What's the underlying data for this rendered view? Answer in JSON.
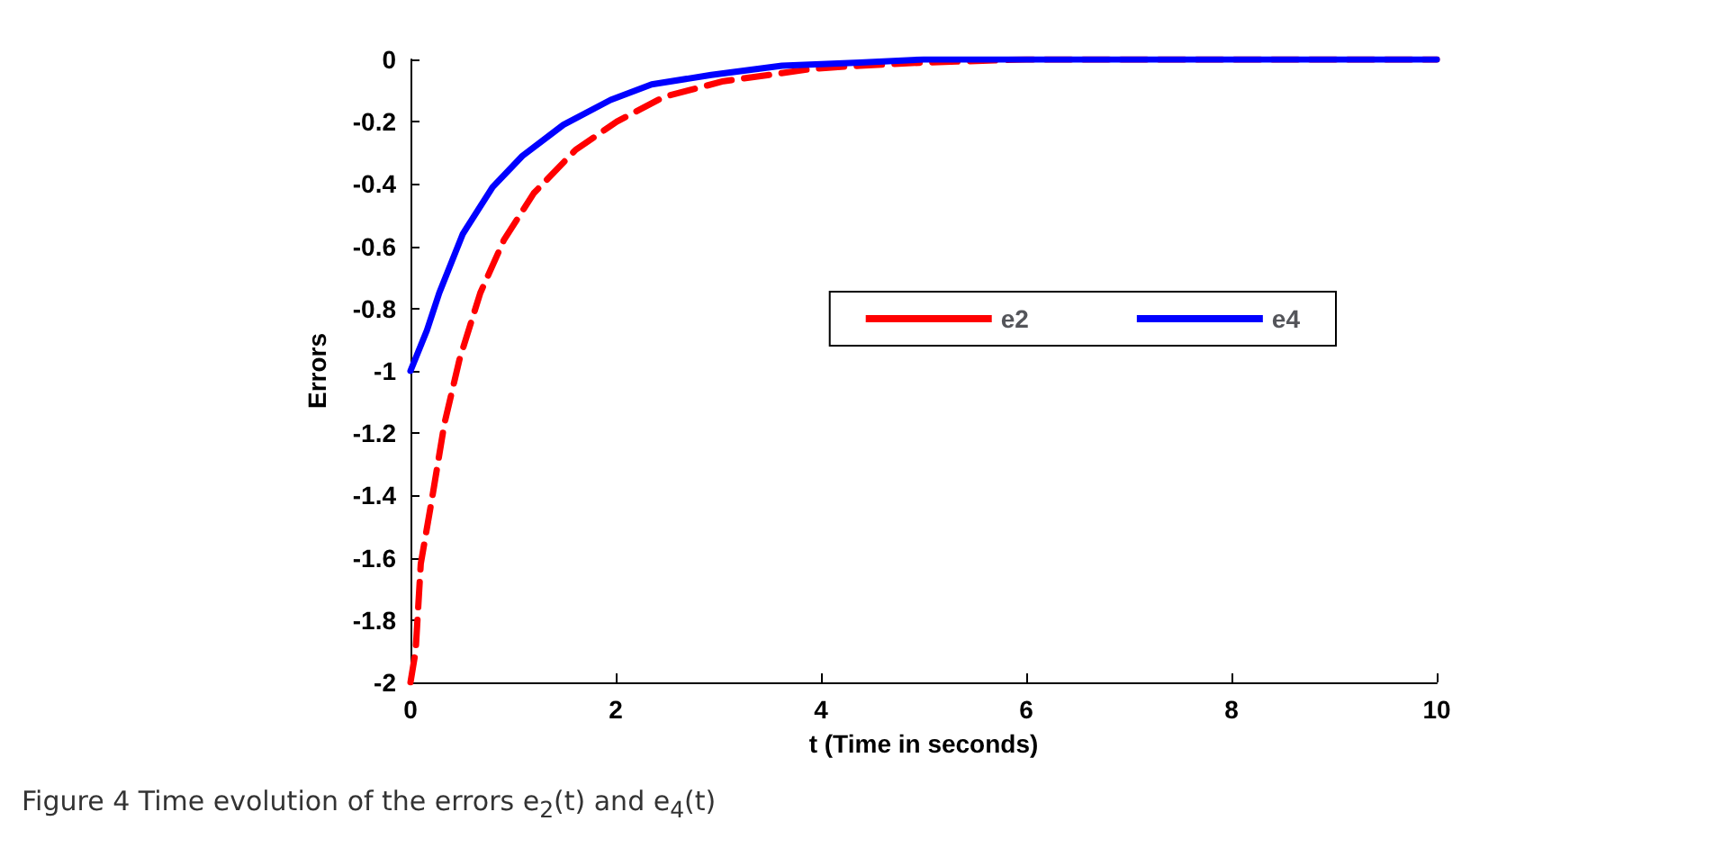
{
  "chart_data": {
    "type": "line",
    "xlabel": "t (Time in seconds)",
    "ylabel": "Errors",
    "annotations": [
      "Figure 4  Time evolution of the errors e$_{2}$(t) and e$_{4}$(t)"
    ],
    "series": [
      {
        "name": "e2",
        "color": "#ff0000",
        "line_style": "dashed",
        "x": [
          0,
          0.05,
          0.1,
          0.22,
          0.33,
          0.48,
          0.68,
          0.91,
          1.2,
          1.61,
          2.01,
          2.47,
          3.05,
          3.92,
          4.38,
          5,
          6,
          8,
          10
        ],
        "values": [
          -2,
          -1.9,
          -1.62,
          -1.39,
          -1.17,
          -0.96,
          -0.75,
          -0.58,
          -0.43,
          -0.29,
          -0.2,
          -0.12,
          -0.07,
          -0.03,
          -0.02,
          -0.01,
          0,
          0,
          0
        ]
      },
      {
        "name": "e4",
        "color": "#0000ff",
        "line_style": "solid",
        "x": [
          0,
          0.16,
          0.28,
          0.51,
          0.8,
          1.09,
          1.49,
          1.95,
          2.35,
          2.93,
          3.62,
          4.38,
          5,
          8,
          10
        ],
        "values": [
          -1,
          -0.87,
          -0.75,
          -0.56,
          -0.41,
          -0.31,
          -0.21,
          -0.13,
          -0.08,
          -0.05,
          -0.02,
          -0.01,
          0,
          0,
          0
        ]
      }
    ],
    "xlim": [
      0,
      10
    ],
    "xticks": [
      0,
      2,
      4,
      6,
      8,
      10
    ],
    "ylim": [
      -2,
      0
    ],
    "yticks": [
      -2,
      -1.8,
      -1.6,
      -1.4,
      -1.2,
      -1,
      -0.8,
      -0.6,
      -0.4,
      -0.2,
      0
    ],
    "grid": false,
    "legend": "right",
    "marker": "none"
  }
}
